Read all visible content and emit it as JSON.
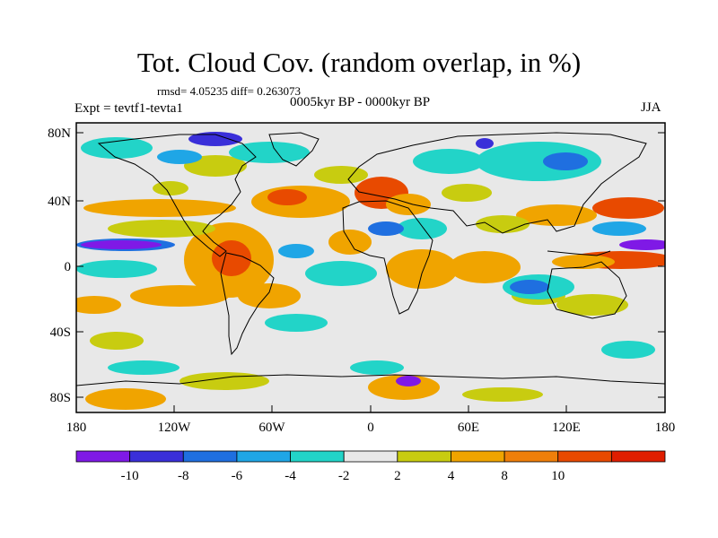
{
  "title": "Tot. Cloud Cov. (random overlap, in %)",
  "stats": "rmsd= 4.05235 diff= 0.263073",
  "experiment": "Expt = tevtf1-tevta1",
  "period": "0005kyr BP - 0000kyr BP",
  "season": "JJA",
  "lat_ticks": [
    "80N",
    "40N",
    "0",
    "40S",
    "80S"
  ],
  "lon_ticks": [
    "180",
    "120W",
    "60W",
    "0",
    "60E",
    "120E",
    "180"
  ],
  "colorbar": {
    "labels": [
      "-10",
      "-8",
      "-6",
      "-4",
      "-2",
      "2",
      "4",
      "8",
      "10"
    ],
    "colors": [
      "#7f19e6",
      "#3a2fd9",
      "#1f6fe0",
      "#1fa6e6",
      "#22d4c8",
      "#e8e8e8",
      "#c8cc10",
      "#f0a400",
      "#ef7f0a",
      "#e84a00",
      "#e01e00"
    ]
  }
}
